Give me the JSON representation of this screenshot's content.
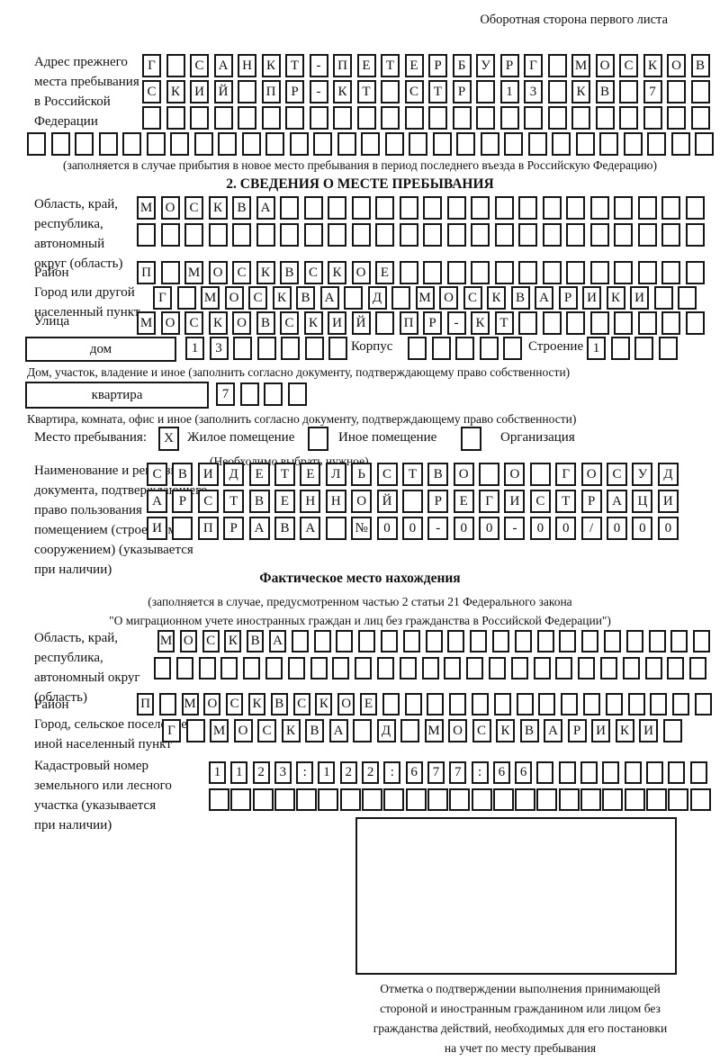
{
  "header": {
    "note": "Оборотная сторона первого листа"
  },
  "prev_address": {
    "label": "Адрес прежнего\nместа пребывания\nв Российской\nФедерации",
    "rows": [
      {
        "text": "Г САНКТ-ПЕТЕРБУРГ МОСКОВ",
        "cells": 24
      },
      {
        "text": "СКИЙ ПР-КТ СТР 13 КВ 7",
        "cells": 24
      },
      {
        "text": "",
        "cells": 24
      },
      {
        "text": "",
        "cells": 29
      }
    ],
    "note": "(заполняется в случае прибытия в новое место пребывания в период последнего въезда в Российскую Федерацию)"
  },
  "section2": {
    "title": "2. СВЕДЕНИЯ О МЕСТЕ ПРЕБЫВАНИЯ",
    "region": {
      "label": "Область, край,\nреспублика,\nавтономный\nокруг (область)",
      "rows": [
        {
          "text": "МОСКВА",
          "cells": 24
        },
        {
          "text": "",
          "cells": 24
        }
      ]
    },
    "district": {
      "label": "Район",
      "row": {
        "text": "П МОСКВСКОЕ",
        "cells": 24
      }
    },
    "city": {
      "label": "Город или другой\nнаселенный пункт",
      "row": {
        "text": "Г МОСКВА Д МОСКВАРИКИ",
        "cells": 23
      }
    },
    "street": {
      "label": "Улица",
      "row": {
        "text": "МОСКОВСКИЙ ПР-КТ",
        "cells": 24
      }
    },
    "house": {
      "box_label": "дом",
      "house_row": {
        "text": "13",
        "cells": 7
      },
      "korpus_label": "Корпус",
      "korpus_row": {
        "text": "",
        "cells": 5
      },
      "stroenie_label": "Строение",
      "stroenie_row": {
        "text": "1",
        "cells": 4
      },
      "note": "Дом, участок, владение и иное (заполнить согласно документу, подтверждающему право собственности)"
    },
    "apartment": {
      "box_label": "квартира",
      "row": {
        "text": "7",
        "cells": 4
      },
      "note": "Квартира, комната, офис и иное (заполнить согласно документу, подтверждающему право собственности)"
    },
    "stay": {
      "label": "Место пребывания:",
      "options": [
        {
          "label": "Жилое помещение",
          "mark": "X"
        },
        {
          "label": "Иное помещение",
          "mark": ""
        },
        {
          "label": "Организация",
          "mark": ""
        }
      ],
      "note": "(Необходимо выбрать нужное)"
    },
    "doc": {
      "label": "Наименование и реквизиты\nдокумента, подтверждающего\nправо пользования\nпомещением (строением,\nсооружением) (указывается\nпри наличии)",
      "rows": [
        {
          "text": "СВИДЕТЕЛЬСТВО О ГОСУД",
          "cells": 21
        },
        {
          "text": "АРСТВЕННОЙ РЕГИСТРАЦИ",
          "cells": 21
        },
        {
          "text": "И ПРАВА №00-00-00/000",
          "cells": 21
        }
      ]
    }
  },
  "actual": {
    "title": "Фактическое место нахождения",
    "note": "(заполняется в случае, предусмотренном частью 2 статьи 21 Федерального закона\n\"О миграционном учете иностранных граждан и лиц без гражданства в Российской Федерации\")",
    "region": {
      "label": "Область, край,\nреспублика,\nавтономный округ\n(область)",
      "rows": [
        {
          "text": "МОСКВА",
          "cells": 25
        },
        {
          "text": "",
          "cells": 25
        }
      ]
    },
    "district": {
      "label": "Район",
      "row": {
        "text": "П МОСКВСКОЕ",
        "cells": 26
      }
    },
    "city": {
      "label": "Город, сельское поселение,\nиной населенный пункт",
      "row": {
        "text": "Г МОСКВА Д МОСКВАРИКИ",
        "cells": 22
      }
    },
    "cadastral": {
      "label": "Кадастровый номер\nземельного или лесного\nучастка (указывается\nпри наличии)",
      "rows": [
        {
          "text": "1123:122:677:66",
          "cells": 23
        },
        {
          "text": "",
          "cells": 23
        }
      ]
    },
    "stamp_note": "Отметка о подтверждении выполнения принимающей\nстороной и иностранным гражданином или лицом без\nгражданства действий, необходимых для его постановки\nна учет по месту пребывания"
  }
}
